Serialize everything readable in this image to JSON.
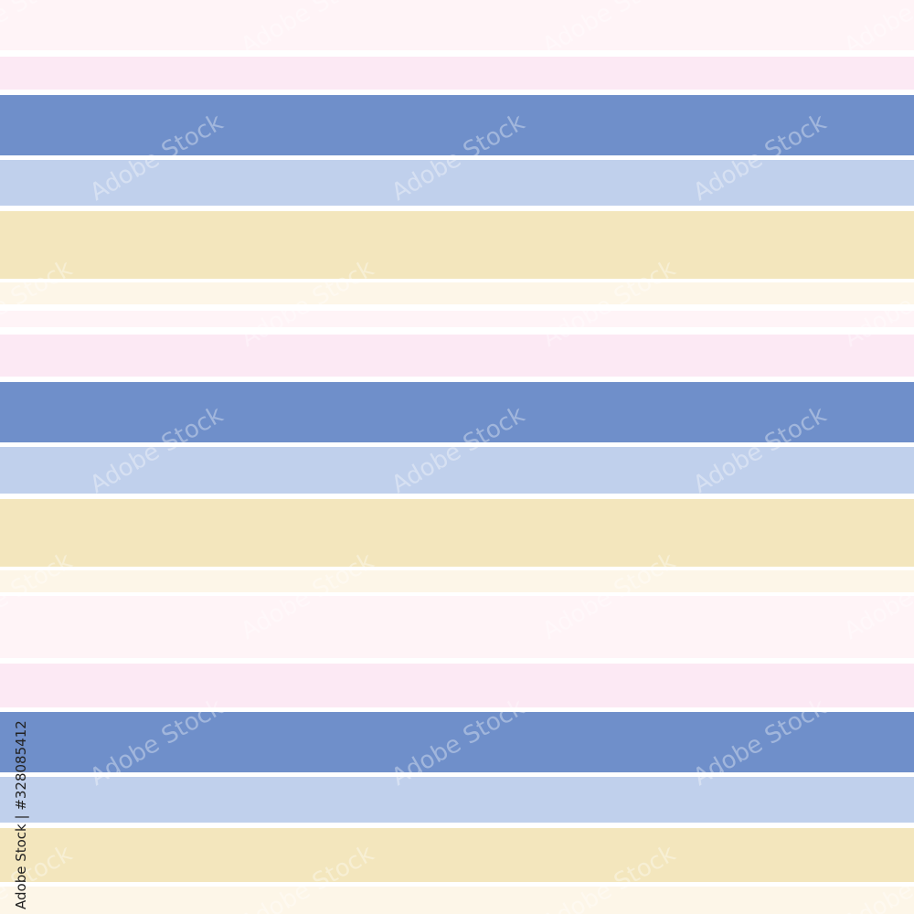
{
  "watermark": "Adobe Stock",
  "stock_id": "Adobe Stock | #328085412"
}
